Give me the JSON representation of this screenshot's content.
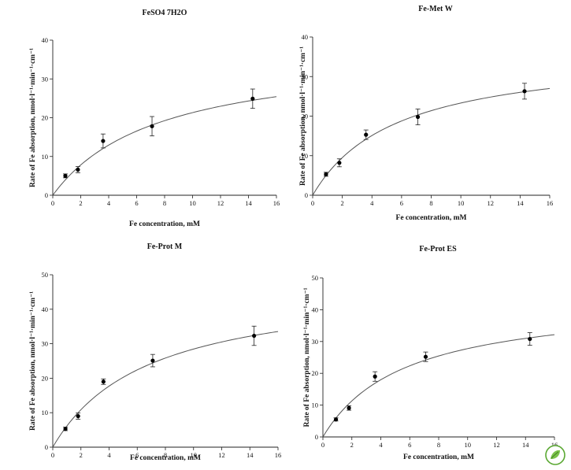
{
  "chart_data": [
    {
      "type": "scatter",
      "title": "FeSO4 7H2O",
      "xlabel": "Fe concentration, mM",
      "ylabel": "Rate of Fe absorption, nmol·l⁻¹·min⁻¹·cm⁻¹",
      "xlim": [
        0,
        16
      ],
      "ylim": [
        0,
        40
      ],
      "xticks": [
        0,
        2,
        4,
        6,
        8,
        10,
        12,
        14,
        16
      ],
      "yticks": [
        0,
        10,
        20,
        30,
        40
      ],
      "grid": false,
      "x": [
        0.9,
        1.8,
        3.6,
        7.1,
        14.3
      ],
      "y": [
        5.0,
        6.6,
        14.0,
        17.8,
        24.9
      ],
      "error": [
        0.5,
        0.8,
        1.8,
        2.5,
        2.5
      ],
      "fit": {
        "model": "michaelis-menten",
        "vmax": 37.5,
        "km": 7.6
      }
    },
    {
      "type": "scatter",
      "title": "Fe-Met W",
      "xlabel": "Fe concentration, mM",
      "ylabel": "Rate of Fe absorption, nmol·l⁻¹·min⁻¹·cm⁻¹",
      "xlim": [
        0,
        16
      ],
      "ylim": [
        0,
        40
      ],
      "xticks": [
        0,
        2,
        4,
        6,
        8,
        10,
        12,
        14,
        16
      ],
      "yticks": [
        0,
        10,
        20,
        30,
        40
      ],
      "grid": false,
      "x": [
        0.9,
        1.8,
        3.6,
        7.1,
        14.3
      ],
      "y": [
        5.3,
        8.2,
        15.3,
        19.8,
        26.3
      ],
      "error": [
        0.5,
        1.0,
        1.2,
        2.0,
        2.0
      ],
      "fit": {
        "model": "michaelis-menten",
        "vmax": 36.6,
        "km": 5.7
      }
    },
    {
      "type": "scatter",
      "title": "Fe-Prot M",
      "xlabel": "Fe concentration, mM",
      "ylabel": "Rate of Fe absorption, nmol·l⁻¹·min⁻¹·cm⁻¹",
      "xlim": [
        0,
        16
      ],
      "ylim": [
        0,
        50
      ],
      "xticks": [
        0,
        2,
        4,
        6,
        8,
        10,
        12,
        14,
        16
      ],
      "yticks": [
        0,
        10,
        20,
        30,
        40,
        50
      ],
      "grid": false,
      "x": [
        0.9,
        1.8,
        3.6,
        7.1,
        14.3
      ],
      "y": [
        5.3,
        9.0,
        19.0,
        25.1,
        32.3
      ],
      "error": [
        0.5,
        0.9,
        0.8,
        1.8,
        2.8
      ],
      "fit": {
        "model": "michaelis-menten",
        "vmax": 47.8,
        "km": 6.8
      }
    },
    {
      "type": "scatter",
      "title": "Fe-Prot ES",
      "xlabel": "Fe concentration, mM",
      "ylabel": "Rate of Fe absorption, nmol·l⁻¹·min⁻¹·cm⁻¹",
      "xlim": [
        0,
        16
      ],
      "ylim": [
        0,
        50
      ],
      "xticks": [
        0,
        2,
        4,
        6,
        8,
        10,
        12,
        14,
        16
      ],
      "yticks": [
        0,
        10,
        20,
        30,
        40,
        50
      ],
      "grid": false,
      "x": [
        0.9,
        1.8,
        3.6,
        7.1,
        14.3
      ],
      "y": [
        5.5,
        9.1,
        19.0,
        25.2,
        30.8
      ],
      "error": [
        0.5,
        0.7,
        1.5,
        1.5,
        2.0
      ],
      "fit": {
        "model": "michaelis-menten",
        "vmax": 43.6,
        "km": 5.7
      }
    }
  ],
  "logo": {
    "icon": "leaf-logo-icon",
    "color": "#5aa832"
  }
}
